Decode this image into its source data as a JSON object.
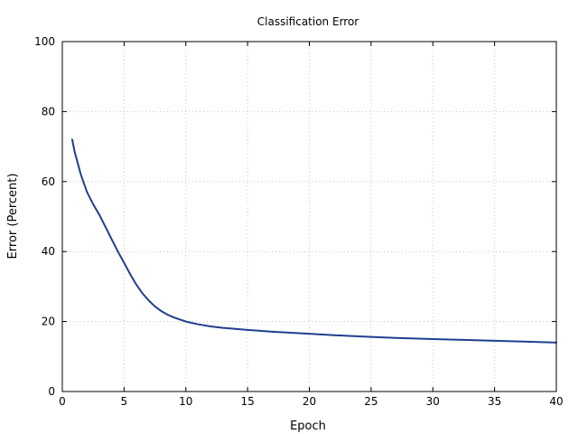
{
  "chart_data": {
    "type": "line",
    "title": "Classification Error",
    "xlabel": "Epoch",
    "ylabel": "Error (Percent)",
    "xlim": [
      0,
      40
    ],
    "ylim": [
      0,
      100
    ],
    "xticks": [
      0,
      5,
      10,
      15,
      20,
      25,
      30,
      35,
      40
    ],
    "yticks": [
      0,
      20,
      40,
      60,
      80,
      100
    ],
    "grid": true,
    "legend": "none",
    "colors": {
      "line": "#1f3f8f",
      "grid": "#c8c8c8",
      "axis": "#000000"
    },
    "series": [
      {
        "x": [
          0.8,
          1.0,
          1.5,
          2.0,
          2.5,
          3.0,
          3.5,
          4.0,
          4.5,
          5.0,
          5.5,
          6.0,
          6.5,
          7.0,
          7.5,
          8.0,
          8.5,
          9.0,
          9.5,
          10,
          11,
          12,
          13,
          14,
          15,
          17,
          20,
          22,
          25,
          27,
          30,
          32,
          35,
          37,
          40
        ],
        "y": [
          72.0,
          68.5,
          62.0,
          57.0,
          53.5,
          50.5,
          47.0,
          43.5,
          40.0,
          36.8,
          33.5,
          30.5,
          28.0,
          26.0,
          24.3,
          23.0,
          22.0,
          21.2,
          20.6,
          20.0,
          19.2,
          18.6,
          18.2,
          17.9,
          17.6,
          17.1,
          16.5,
          16.1,
          15.6,
          15.3,
          15.0,
          14.8,
          14.5,
          14.3,
          14.0
        ]
      }
    ]
  }
}
